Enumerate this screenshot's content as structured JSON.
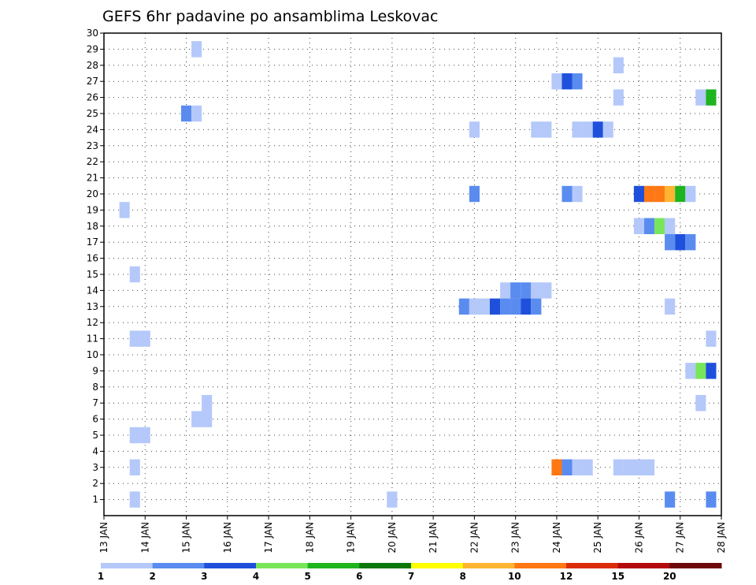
{
  "chart_data": {
    "type": "heatmap",
    "title": "GEFS 6hr padavine po ansamblima Leskovac",
    "xlabel": "",
    "ylabel": "",
    "x_ticks": [
      "13 JAN",
      "14 JAN",
      "15 JAN",
      "16 JAN",
      "17 JAN",
      "18 JAN",
      "19 JAN",
      "20 JAN",
      "21 JAN",
      "22 JAN",
      "23 JAN",
      "24 JAN",
      "25 JAN",
      "26 JAN",
      "27 JAN",
      "28 JAN"
    ],
    "xlim": [
      13,
      28
    ],
    "y_ticks": [
      1,
      2,
      3,
      4,
      5,
      6,
      7,
      8,
      9,
      10,
      11,
      12,
      13,
      14,
      15,
      16,
      17,
      18,
      19,
      20,
      21,
      22,
      23,
      24,
      25,
      26,
      27,
      28,
      29,
      30
    ],
    "ylim": [
      0,
      30
    ],
    "grid": true,
    "legend_labels": [
      "1",
      "2",
      "3",
      "4",
      "5",
      "6",
      "7",
      "8",
      "10",
      "12",
      "15",
      "20"
    ],
    "legend_colors": [
      "#b4c8fa",
      "#5a8cf0",
      "#1e50dc",
      "#78e65a",
      "#1eb41e",
      "#0a780a",
      "#ffff00",
      "#ffb432",
      "#ff7814",
      "#dc2d0a",
      "#b40a0a",
      "#6e0a0a"
    ],
    "cells": [
      {
        "member": 29,
        "day": 15.25,
        "cat": 1
      },
      {
        "member": 28,
        "day": 25.5,
        "cat": 1
      },
      {
        "member": 27,
        "day": 24.0,
        "cat": 1
      },
      {
        "member": 27,
        "day": 24.25,
        "cat": 3
      },
      {
        "member": 27,
        "day": 24.5,
        "cat": 2
      },
      {
        "member": 26,
        "day": 25.5,
        "cat": 1
      },
      {
        "member": 26,
        "day": 27.5,
        "cat": 1
      },
      {
        "member": 26,
        "day": 27.75,
        "cat": 5
      },
      {
        "member": 25,
        "day": 15.0,
        "cat": 2
      },
      {
        "member": 25,
        "day": 15.25,
        "cat": 1
      },
      {
        "member": 24,
        "day": 22.0,
        "cat": 1
      },
      {
        "member": 24,
        "day": 23.5,
        "cat": 1
      },
      {
        "member": 24,
        "day": 23.75,
        "cat": 1
      },
      {
        "member": 24,
        "day": 24.5,
        "cat": 1
      },
      {
        "member": 24,
        "day": 24.75,
        "cat": 1
      },
      {
        "member": 24,
        "day": 25.0,
        "cat": 3
      },
      {
        "member": 24,
        "day": 25.25,
        "cat": 1
      },
      {
        "member": 20,
        "day": 22.0,
        "cat": 2
      },
      {
        "member": 20,
        "day": 24.25,
        "cat": 2
      },
      {
        "member": 20,
        "day": 24.5,
        "cat": 1
      },
      {
        "member": 20,
        "day": 26.0,
        "cat": 3
      },
      {
        "member": 20,
        "day": 26.25,
        "cat": 10
      },
      {
        "member": 20,
        "day": 26.5,
        "cat": 10
      },
      {
        "member": 20,
        "day": 26.75,
        "cat": 8
      },
      {
        "member": 20,
        "day": 27.0,
        "cat": 5
      },
      {
        "member": 20,
        "day": 27.25,
        "cat": 1
      },
      {
        "member": 19,
        "day": 13.5,
        "cat": 1
      },
      {
        "member": 18,
        "day": 26.0,
        "cat": 1
      },
      {
        "member": 18,
        "day": 26.25,
        "cat": 2
      },
      {
        "member": 18,
        "day": 26.5,
        "cat": 4
      },
      {
        "member": 18,
        "day": 26.75,
        "cat": 1
      },
      {
        "member": 17,
        "day": 26.75,
        "cat": 2
      },
      {
        "member": 17,
        "day": 27.0,
        "cat": 3
      },
      {
        "member": 17,
        "day": 27.25,
        "cat": 2
      },
      {
        "member": 15,
        "day": 13.75,
        "cat": 1
      },
      {
        "member": 14,
        "day": 22.75,
        "cat": 1
      },
      {
        "member": 14,
        "day": 23.0,
        "cat": 2
      },
      {
        "member": 14,
        "day": 23.25,
        "cat": 2
      },
      {
        "member": 14,
        "day": 23.5,
        "cat": 1
      },
      {
        "member": 14,
        "day": 23.75,
        "cat": 1
      },
      {
        "member": 13,
        "day": 21.75,
        "cat": 2
      },
      {
        "member": 13,
        "day": 22.0,
        "cat": 1
      },
      {
        "member": 13,
        "day": 22.25,
        "cat": 1
      },
      {
        "member": 13,
        "day": 22.5,
        "cat": 3
      },
      {
        "member": 13,
        "day": 22.75,
        "cat": 2
      },
      {
        "member": 13,
        "day": 23.0,
        "cat": 2
      },
      {
        "member": 13,
        "day": 23.25,
        "cat": 3
      },
      {
        "member": 13,
        "day": 23.5,
        "cat": 2
      },
      {
        "member": 13,
        "day": 26.75,
        "cat": 1
      },
      {
        "member": 11,
        "day": 13.75,
        "cat": 1
      },
      {
        "member": 11,
        "day": 14.0,
        "cat": 1
      },
      {
        "member": 11,
        "day": 27.75,
        "cat": 1
      },
      {
        "member": 9,
        "day": 27.25,
        "cat": 1
      },
      {
        "member": 9,
        "day": 27.5,
        "cat": 4
      },
      {
        "member": 9,
        "day": 27.75,
        "cat": 3
      },
      {
        "member": 7,
        "day": 15.5,
        "cat": 1
      },
      {
        "member": 7,
        "day": 27.5,
        "cat": 1
      },
      {
        "member": 6,
        "day": 15.25,
        "cat": 1
      },
      {
        "member": 6,
        "day": 15.5,
        "cat": 1
      },
      {
        "member": 5,
        "day": 13.75,
        "cat": 1
      },
      {
        "member": 5,
        "day": 14.0,
        "cat": 1
      },
      {
        "member": 3,
        "day": 13.75,
        "cat": 1
      },
      {
        "member": 3,
        "day": 24.0,
        "cat": 10
      },
      {
        "member": 3,
        "day": 24.25,
        "cat": 2
      },
      {
        "member": 3,
        "day": 24.5,
        "cat": 1
      },
      {
        "member": 3,
        "day": 24.75,
        "cat": 1
      },
      {
        "member": 3,
        "day": 25.5,
        "cat": 1
      },
      {
        "member": 3,
        "day": 25.75,
        "cat": 1
      },
      {
        "member": 3,
        "day": 26.0,
        "cat": 1
      },
      {
        "member": 3,
        "day": 26.25,
        "cat": 1
      },
      {
        "member": 1,
        "day": 13.75,
        "cat": 1
      },
      {
        "member": 1,
        "day": 20.0,
        "cat": 1
      },
      {
        "member": 1,
        "day": 26.75,
        "cat": 2
      },
      {
        "member": 1,
        "day": 27.75,
        "cat": 2
      }
    ]
  }
}
